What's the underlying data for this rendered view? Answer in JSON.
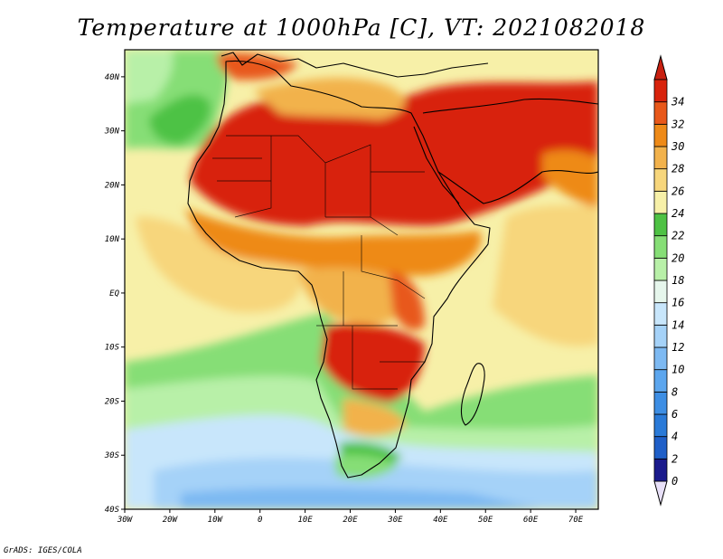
{
  "title": "Temperature at 1000hPa [C], VT: 2021082018",
  "credit": "GrADS: IGES/COLA",
  "map": {
    "projection": "lat-lon",
    "lon_range": [
      -30,
      75
    ],
    "lat_range": [
      -40,
      45
    ],
    "lon_ticks": [
      {
        "value": -30,
        "label": "30W"
      },
      {
        "value": -20,
        "label": "20W"
      },
      {
        "value": -10,
        "label": "10W"
      },
      {
        "value": 0,
        "label": "0"
      },
      {
        "value": 10,
        "label": "10E"
      },
      {
        "value": 20,
        "label": "20E"
      },
      {
        "value": 30,
        "label": "30E"
      },
      {
        "value": 40,
        "label": "40E"
      },
      {
        "value": 50,
        "label": "50E"
      },
      {
        "value": 60,
        "label": "60E"
      },
      {
        "value": 70,
        "label": "70E"
      }
    ],
    "lat_ticks": [
      {
        "value": 40,
        "label": "40N"
      },
      {
        "value": 30,
        "label": "30N"
      },
      {
        "value": 20,
        "label": "20N"
      },
      {
        "value": 10,
        "label": "10N"
      },
      {
        "value": 0,
        "label": "EQ"
      },
      {
        "value": -10,
        "label": "10S"
      },
      {
        "value": -20,
        "label": "20S"
      },
      {
        "value": -30,
        "label": "30S"
      },
      {
        "value": -40,
        "label": "40S"
      }
    ]
  },
  "colorbar": {
    "levels": [
      0,
      2,
      4,
      6,
      8,
      10,
      12,
      14,
      16,
      18,
      20,
      22,
      24,
      26,
      28,
      30,
      32,
      34
    ],
    "colors": [
      "#1a1a8c",
      "#1f5fc8",
      "#2a7ad8",
      "#3d8ee4",
      "#5ca6ee",
      "#7db9f2",
      "#a5d2f8",
      "#c8e6fb",
      "#e6f6ec",
      "#b8f0a8",
      "#86de76",
      "#4ec244",
      "#f7f0a8",
      "#f7d67c",
      "#f2b24c",
      "#ee8a18",
      "#e8581a",
      "#d8230c"
    ],
    "under_color": "#e8e0f8",
    "over_color": "#c82010"
  }
}
